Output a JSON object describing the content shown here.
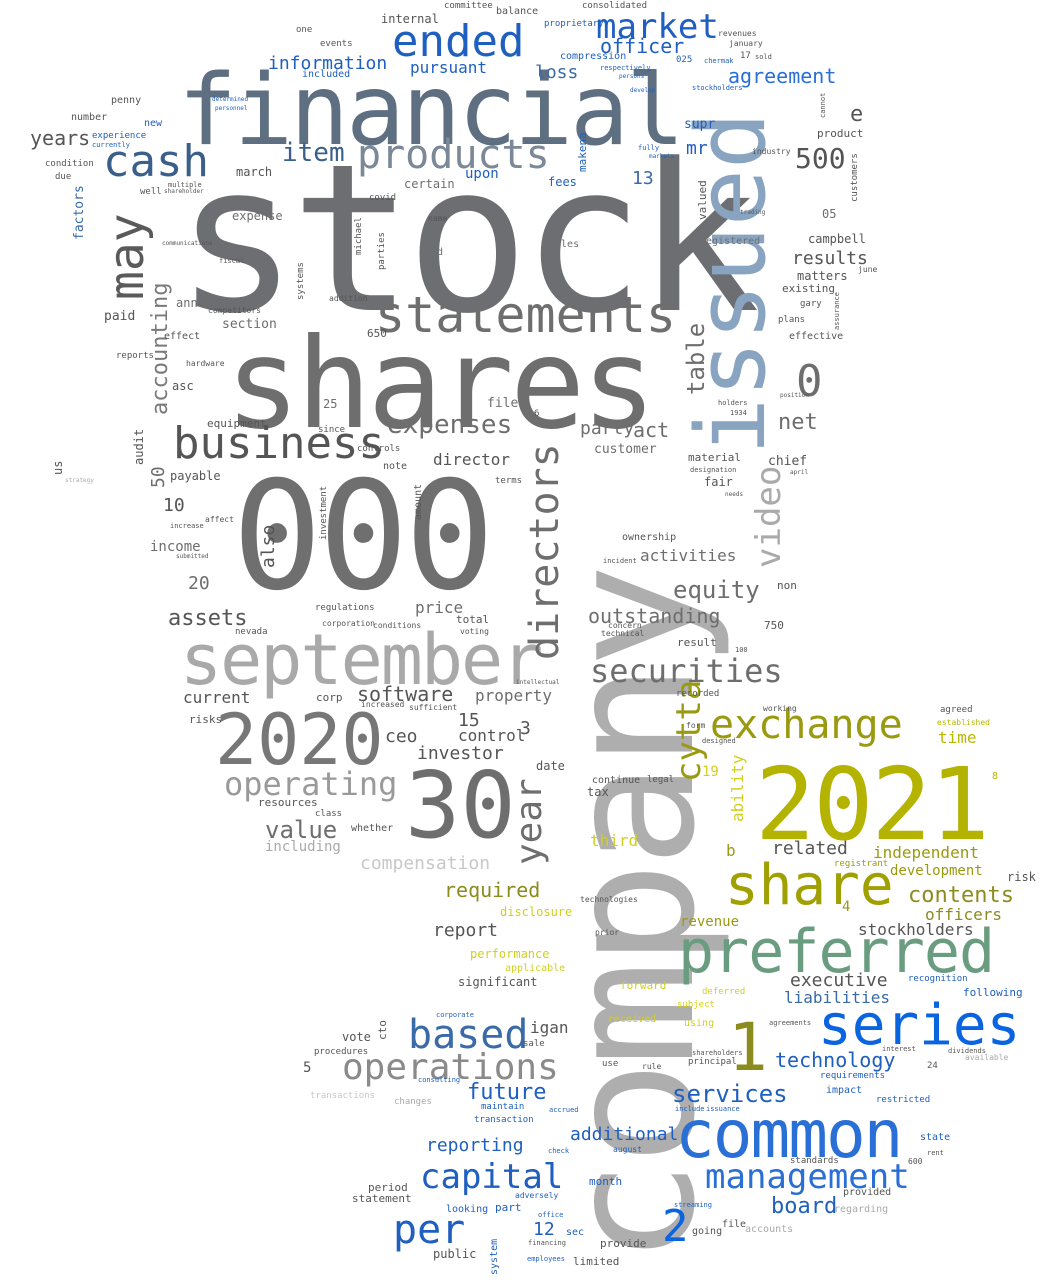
{
  "words": {
    "stock": "stock",
    "company": "company",
    "shares": "shares",
    "financial": "financial",
    "n000": "000",
    "issued": "issued",
    "n2021": "2021",
    "september": "september",
    "n30": "30",
    "n2020": "2020",
    "common": "common",
    "preferred": "preferred",
    "share": "share",
    "series": "series",
    "statements": "statements",
    "cash": "cash",
    "ended": "ended",
    "products": "products",
    "business": "business",
    "may": "may",
    "directors": "directors",
    "exchange": "exchange",
    "market": "market",
    "based": "based",
    "operations": "operations",
    "management": "management",
    "capital": "capital",
    "per": "per",
    "operating": "operating",
    "securities": "securities",
    "year": "year",
    "cytta": "cytta",
    "video": "video",
    "n1": "1",
    "n2": "2",
    "n0": "0",
    "n500": "500",
    "item": "item",
    "information": "information",
    "officer": "officer",
    "agreement": "agreement",
    "accounting": "accounting",
    "expenses": "expenses",
    "value": "value",
    "assets": "assets",
    "table": "table",
    "net": "net",
    "loss": "loss",
    "pursuant": "pursuant",
    "years": "years",
    "results": "results",
    "equity": "equity",
    "outstanding": "outstanding",
    "software": "software",
    "compensation": "compensation",
    "contents": "contents",
    "required": "required",
    "report": "report",
    "board": "board",
    "future": "future",
    "services": "services",
    "technology": "technology",
    "reporting": "reporting",
    "additional": "additional",
    "stockholders": "stockholders",
    "executive": "executive",
    "liabilities": "liabilities",
    "officers": "officers",
    "independent": "independent",
    "related": "related",
    "time": "time",
    "activities": "activities",
    "director": "director",
    "party": "party",
    "act": "act",
    "investor": "investor",
    "ceo": "ceo",
    "control": "control",
    "property": "property",
    "price": "price",
    "current": "current",
    "income": "income",
    "also": "also",
    "development": "development",
    "third": "third",
    "ability": "ability",
    "revenue": "revenue",
    "performance": "performance",
    "disclosure": "disclosure",
    "mr": "mr",
    "upon": "upon",
    "e": "e",
    "n13": "13",
    "n10": "10",
    "n20": "20",
    "n50": "50",
    "n15": "15",
    "n3": "3",
    "n5": "5",
    "n12": "12",
    "n19": "19",
    "n4": "4",
    "n25": "25",
    "n750": "750",
    "n05": "05",
    "factors": "factors",
    "paid": "paid",
    "section": "section",
    "annual": "annual",
    "audit": "audit",
    "us": "us",
    "payable": "payable",
    "asc": "asc",
    "equipment": "equipment",
    "expense": "expense",
    "march": "march",
    "internal": "internal",
    "included": "included",
    "fees": "fees",
    "certain": "certain",
    "campbell": "campbell",
    "matters": "matters",
    "product": "product",
    "existing": "existing",
    "chief": "chief",
    "customer": "customer",
    "material": "material",
    "fair": "fair",
    "ownership": "ownership",
    "amount": "amount",
    "investment": "investment",
    "filed": "filed",
    "risks": "risks",
    "resources": "resources",
    "whether": "whether",
    "including": "including",
    "class": "class",
    "date": "date",
    "tax": "tax",
    "continue": "continue",
    "significant": "significant",
    "vote": "vote",
    "cto": "cto",
    "procedures": "procedures",
    "period": "period",
    "statement": "statement",
    "public": "public",
    "limited": "limited",
    "provide": "provide",
    "month": "month",
    "system": "system",
    "sec": "sec",
    "looking": "looking",
    "part": "part",
    "going": "going",
    "file": "file",
    "accounts": "accounts",
    "regarding": "regarding",
    "provided": "provided",
    "standards": "standards",
    "restricted": "restricted",
    "impact": "impact",
    "requirements": "requirements",
    "following": "following",
    "recognition": "recognition",
    "risk": "risk",
    "forward": "forward",
    "applicable": "applicable",
    "received": "received",
    "deferred": "deferred",
    "subject": "subject",
    "using": "using",
    "igan": "igan",
    "sale": "sale",
    "maintain": "maintain",
    "transaction": "transaction",
    "transactions": "transactions",
    "changes": "changes",
    "makena": "makena",
    "valued": "valued",
    "registered": "registered",
    "customers": "customers",
    "effective": "effective",
    "plans": "plans",
    "gary": "gary",
    "non": "non",
    "supr": "supr",
    "balance": "balance",
    "committee": "committee",
    "consolidated": "consolidated",
    "compression": "compression",
    "proprietary": "proprietary",
    "events": "events",
    "one": "one",
    "number": "number",
    "penny": "penny",
    "experience": "experience",
    "new": "new",
    "condition": "condition",
    "due": "due",
    "well": "well",
    "covid": "covid",
    "michael": "michael",
    "parties": "parties",
    "used": "used",
    "name": "name",
    "systems": "systems",
    "addition": "addition",
    "effect": "effect",
    "reports": "reports",
    "hardware": "hardware",
    "competitors": "competitors",
    "note": "note",
    "controls": "controls",
    "terms": "terms",
    "sales": "sales",
    "nevada": "nevada",
    "regulations": "regulations",
    "corporation": "corporation",
    "conditions": "conditions",
    "total": "total",
    "voting": "voting",
    "corp": "corp",
    "sufficient": "sufficient",
    "increased": "increased",
    "result": "result",
    "recorded": "recorded",
    "concern": "concern",
    "technical": "technical",
    "form": "form",
    "designed": "designed",
    "working": "working",
    "agreed": "agreed",
    "established": "established",
    "legal": "legal",
    "state": "state",
    "rent": "rent",
    "interest": "interest",
    "dividends": "dividends",
    "available": "available",
    "principal": "principal",
    "shareholders": "shareholders",
    "agreements": "agreements",
    "technologies": "technologies",
    "prior": "prior",
    "corporate": "corporate",
    "consulting": "consulting",
    "accrued": "accrued",
    "check": "check",
    "financing": "financing",
    "employees": "employees",
    "issuance": "issuance",
    "include": "include",
    "rule": "rule",
    "use": "use",
    "adversely": "adversely",
    "office": "office",
    "august": "august",
    "streaming": "streaming",
    "registrant": "registrant",
    "june": "june",
    "january": "january",
    "revenues": "revenues",
    "sold": "sold",
    "chermak": "chermak",
    "cannot": "cannot",
    "industry": "industry",
    "assurance": "assurance",
    "stockholders_small": "stockholders",
    "respectively": "respectively",
    "determined": "determined",
    "personnel": "personnel",
    "currently": "currently",
    "strategy": "strategy",
    "multiple": "multiple",
    "shareholder": "shareholder",
    "fiscal": "fiscal",
    "communications": "communications",
    "submitted": "submitted",
    "increase": "increase",
    "affect": "affect",
    "since": "since",
    "n650": "650",
    "n17": "17",
    "n025": "025",
    "n100": "100",
    "n24": "24",
    "n600": "600",
    "n6": "6",
    "n8": "8",
    "n1934": "1934",
    "holders": "holders",
    "designation": "designation",
    "position": "position",
    "april": "april",
    "needs": "needs",
    "incident": "incident",
    "intellectual": "intellectual",
    "trading": "trading",
    "fully": "fully",
    "markets": "markets",
    "develop": "develop",
    "persons": "persons",
    "bf": "b"
  },
  "colors": {
    "gray1": "#6e6e6e",
    "gray2": "#8a8a8a",
    "gray3": "#aaaaaa",
    "gray4": "#555555",
    "slate": "#5f6f82",
    "steel": "#89a4c0",
    "olive": "#b8b800",
    "olive2": "#8c8c1e",
    "blue1": "#1f5fbf",
    "blue2": "#2a6fd6",
    "blue3": "#0a64e0",
    "green": "#6a9c80",
    "yellow": "#d8d820"
  }
}
